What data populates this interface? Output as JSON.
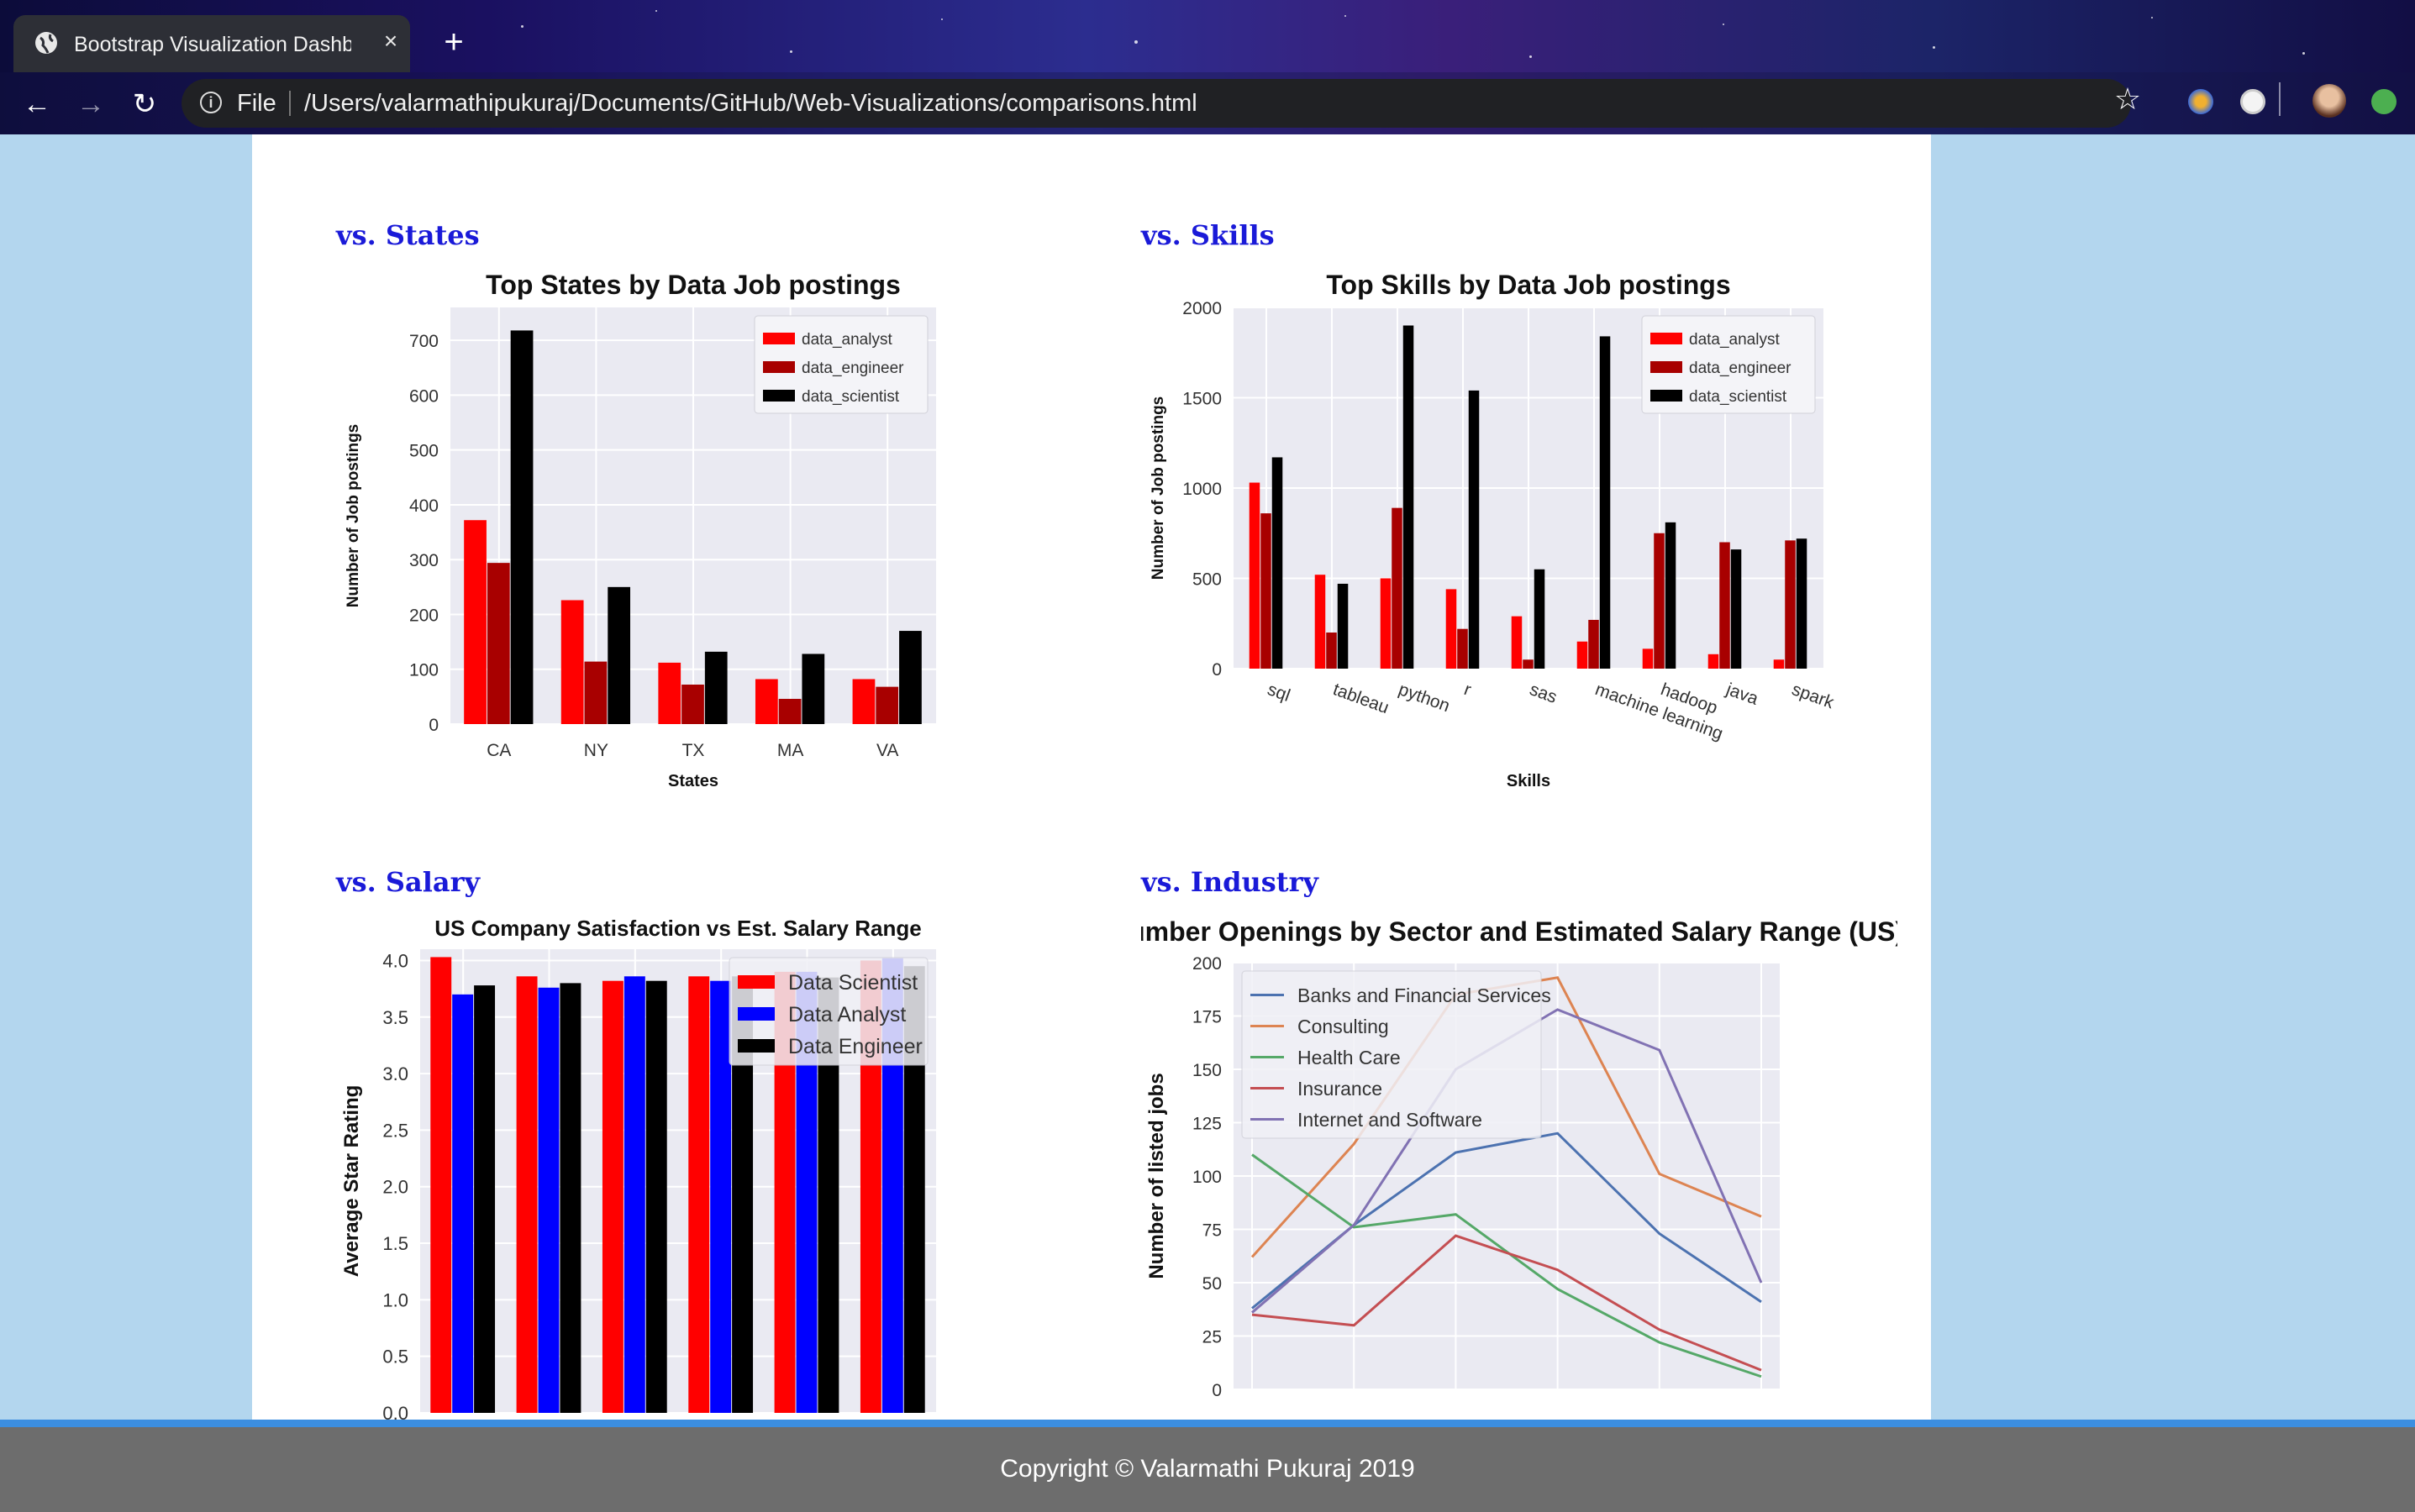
{
  "browser": {
    "tab_title": "Bootstrap Visualization Dashboard",
    "tab_close": "×",
    "new_tab": "+",
    "back": "←",
    "forward": "→",
    "reload": "↻",
    "info": "i",
    "file_label": "File",
    "url": "/Users/valarmathipukuraj/Documents/GitHub/Web-Visualizations/comparisons.html",
    "bookmark": "☆"
  },
  "sections": {
    "states": "vs. States",
    "skills": "vs. Skills",
    "salary": "vs. Salary",
    "industry": "vs. Industry"
  },
  "footer": {
    "text": "Copyright © Valarmathi Pukuraj 2019"
  },
  "chart_data": [
    {
      "id": "states",
      "type": "bar",
      "title": "Top States by Data Job postings",
      "xlabel": "States",
      "ylabel": "Number of Job postings",
      "categories": [
        "CA",
        "NY",
        "TX",
        "MA",
        "VA"
      ],
      "ylim": [
        0,
        760
      ],
      "yticks": [
        0,
        100,
        200,
        300,
        400,
        500,
        600,
        700
      ],
      "grid": true,
      "legend": "top-right",
      "series": [
        {
          "name": "data_analyst",
          "color": "#ff0000",
          "values": [
            372,
            226,
            112,
            82,
            82
          ]
        },
        {
          "name": "data_engineer",
          "color": "#a80000",
          "values": [
            294,
            114,
            72,
            46,
            68
          ]
        },
        {
          "name": "data_scientist",
          "color": "#000000",
          "values": [
            718,
            250,
            132,
            128,
            170
          ]
        }
      ]
    },
    {
      "id": "skills",
      "type": "bar",
      "title": "Top Skills by Data Job postings",
      "xlabel": "Skills",
      "ylabel": "Number of Job postings",
      "categories": [
        "sql",
        "tableau",
        "python",
        "r",
        "sas",
        "machine learning",
        "hadoop",
        "java",
        "spark"
      ],
      "ylim": [
        0,
        2000
      ],
      "yticks": [
        0,
        500,
        1000,
        1500,
        2000
      ],
      "grid": true,
      "legend": "top-right",
      "series": [
        {
          "name": "data_analyst",
          "color": "#ff0000",
          "values": [
            1030,
            520,
            500,
            440,
            290,
            150,
            110,
            80,
            50
          ]
        },
        {
          "name": "data_engineer",
          "color": "#a80000",
          "values": [
            860,
            200,
            890,
            220,
            50,
            270,
            750,
            700,
            710
          ]
        },
        {
          "name": "data_scientist",
          "color": "#000000",
          "values": [
            1170,
            470,
            1900,
            1540,
            550,
            1840,
            810,
            660,
            720
          ]
        }
      ]
    },
    {
      "id": "salary",
      "type": "bar",
      "title": "US Company Satisfaction vs Est. Salary Range",
      "xlabel": "",
      "ylabel": "Average Star Rating",
      "categories": [
        "",
        "",
        "",
        "",
        "",
        ""
      ],
      "ylim": [
        0,
        4.1
      ],
      "yticks": [
        "0.0",
        "0.5",
        "1.0",
        "1.5",
        "2.0",
        "2.5",
        "3.0",
        "3.5",
        "4.0"
      ],
      "grid": true,
      "legend": "top-right",
      "series": [
        {
          "name": "Data Scientist",
          "color": "#ff0000",
          "values": [
            4.03,
            3.86,
            3.82,
            3.86,
            3.9,
            4.0
          ]
        },
        {
          "name": "Data Analyst",
          "color": "#0000ff",
          "values": [
            3.7,
            3.76,
            3.86,
            3.82,
            3.9,
            4.02
          ]
        },
        {
          "name": "Data Engineer",
          "color": "#000000",
          "values": [
            3.78,
            3.8,
            3.82,
            3.86,
            3.85,
            3.95
          ]
        }
      ]
    },
    {
      "id": "industry",
      "type": "line",
      "title": "Number Openings by Sector and Estimated Salary Range (US)",
      "xlabel": "",
      "ylabel": "Number of listed jobs",
      "x": [
        0,
        1,
        2,
        3,
        4,
        5
      ],
      "ylim": [
        0,
        200
      ],
      "yticks": [
        0,
        25,
        50,
        75,
        100,
        125,
        150,
        175,
        200
      ],
      "grid": true,
      "legend": "top-left",
      "series": [
        {
          "name": "Banks and Financial Services",
          "color": "#4c72b0",
          "values": [
            38,
            77,
            111,
            120,
            73,
            41
          ]
        },
        {
          "name": "Consulting",
          "color": "#dd8452",
          "values": [
            62,
            115,
            185,
            193,
            101,
            81
          ]
        },
        {
          "name": "Health Care",
          "color": "#55a868",
          "values": [
            110,
            76,
            82,
            47,
            22,
            6
          ]
        },
        {
          "name": "Insurance",
          "color": "#c44e52",
          "values": [
            35,
            30,
            72,
            56,
            28,
            9
          ]
        },
        {
          "name": "Internet and Software",
          "color": "#8172b3",
          "values": [
            36,
            77,
            150,
            178,
            159,
            50
          ]
        }
      ]
    }
  ]
}
